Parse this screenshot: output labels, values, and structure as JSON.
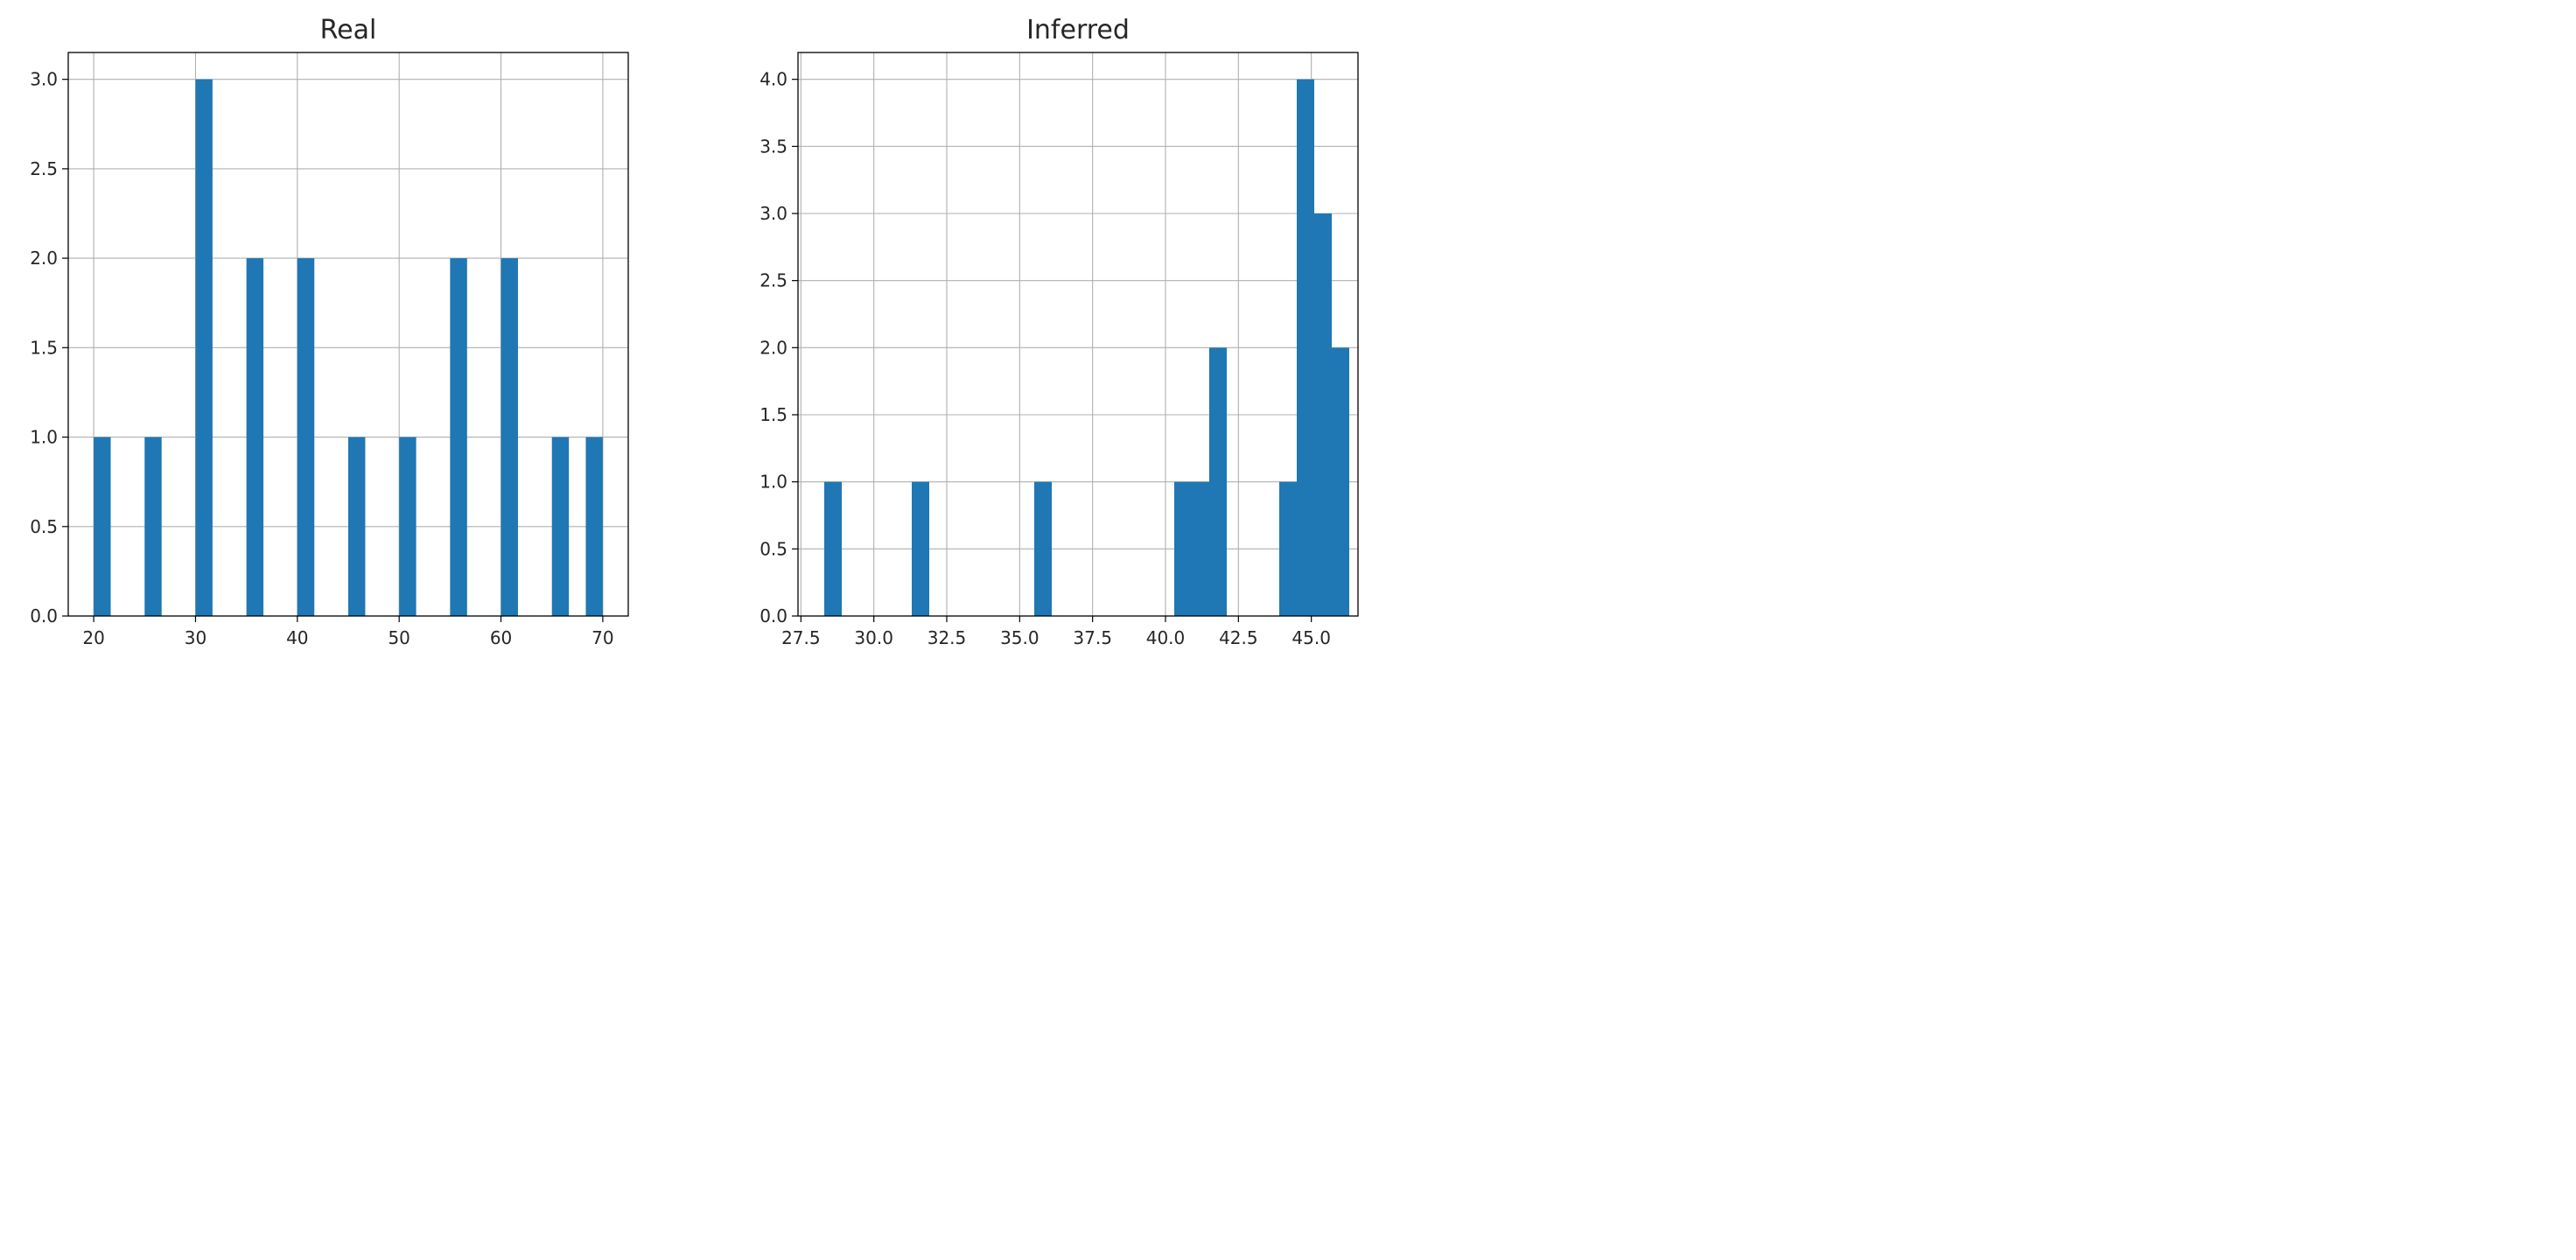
{
  "chart_data": [
    {
      "type": "bar",
      "title": "Real",
      "xlabel": "",
      "ylabel": "",
      "xlim": [
        17.5,
        72.5
      ],
      "ylim": [
        0,
        3.15
      ],
      "grid": true,
      "bar_color": "#1f77b4",
      "x_ticks": [
        20,
        30,
        40,
        50,
        60,
        70
      ],
      "x_tick_labels": [
        "20",
        "30",
        "40",
        "50",
        "60",
        "70"
      ],
      "y_ticks": [
        0,
        0.5,
        1,
        1.5,
        2,
        2.5,
        3
      ],
      "y_tick_labels": [
        "0.0",
        "0.5",
        "1.0",
        "1.5",
        "2.0",
        "2.5",
        "3.0"
      ],
      "bins": [
        {
          "x_start": 20,
          "x_end": 21.67,
          "value": 1
        },
        {
          "x_start": 25,
          "x_end": 26.67,
          "value": 1
        },
        {
          "x_start": 30,
          "x_end": 31.67,
          "value": 3
        },
        {
          "x_start": 35,
          "x_end": 36.67,
          "value": 2
        },
        {
          "x_start": 40,
          "x_end": 41.67,
          "value": 2
        },
        {
          "x_start": 45,
          "x_end": 46.67,
          "value": 1
        },
        {
          "x_start": 50,
          "x_end": 51.67,
          "value": 1
        },
        {
          "x_start": 55,
          "x_end": 56.67,
          "value": 2
        },
        {
          "x_start": 60,
          "x_end": 61.67,
          "value": 2
        },
        {
          "x_start": 65,
          "x_end": 66.67,
          "value": 1
        },
        {
          "x_start": 68.33,
          "x_end": 70,
          "value": 1
        }
      ]
    },
    {
      "type": "bar",
      "title": "Inferred",
      "xlabel": "",
      "ylabel": "",
      "xlim": [
        27.4,
        46.6
      ],
      "ylim": [
        0,
        4.2
      ],
      "grid": true,
      "bar_color": "#1f77b4",
      "x_ticks": [
        27.5,
        30,
        32.5,
        35,
        37.5,
        40,
        42.5,
        45
      ],
      "x_tick_labels": [
        "27.5",
        "30.0",
        "32.5",
        "35.0",
        "37.5",
        "40.0",
        "42.5",
        "45.0"
      ],
      "y_ticks": [
        0,
        0.5,
        1,
        1.5,
        2,
        2.5,
        3,
        3.5,
        4
      ],
      "y_tick_labels": [
        "0.0",
        "0.5",
        "1.0",
        "1.5",
        "2.0",
        "2.5",
        "3.0",
        "3.5",
        "4.0"
      ],
      "bins": [
        {
          "x_start": 28.3,
          "x_end": 28.9,
          "value": 1
        },
        {
          "x_start": 31.3,
          "x_end": 31.9,
          "value": 1
        },
        {
          "x_start": 35.5,
          "x_end": 36.1,
          "value": 1
        },
        {
          "x_start": 40.3,
          "x_end": 40.9,
          "value": 1
        },
        {
          "x_start": 40.9,
          "x_end": 41.5,
          "value": 1
        },
        {
          "x_start": 41.5,
          "x_end": 42.1,
          "value": 2
        },
        {
          "x_start": 43.9,
          "x_end": 44.5,
          "value": 1
        },
        {
          "x_start": 44.5,
          "x_end": 45.1,
          "value": 4
        },
        {
          "x_start": 45.1,
          "x_end": 45.7,
          "value": 3
        },
        {
          "x_start": 45.7,
          "x_end": 46.3,
          "value": 2
        }
      ]
    }
  ]
}
